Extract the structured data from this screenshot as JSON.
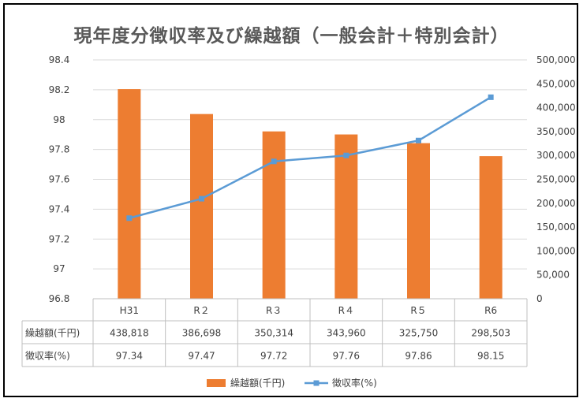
{
  "chart_data": {
    "type": "bar+line",
    "title": "現年度分徴収率及び繰越額（一般会計＋特別会計）",
    "categories": [
      "H31",
      "R２",
      "R３",
      "R４",
      "R５",
      "R6"
    ],
    "series": [
      {
        "name": "繰越額(千円)",
        "type": "bar",
        "axis": "right",
        "color": "#ED7D31",
        "values": [
          438818,
          386698,
          350314,
          343960,
          325750,
          298503
        ],
        "labels": [
          "438,818",
          "386,698",
          "350,314",
          "343,960",
          "325,750",
          "298,503"
        ]
      },
      {
        "name": "徴収率(%)",
        "type": "line",
        "axis": "left",
        "color": "#5B9BD5",
        "values": [
          97.34,
          97.47,
          97.72,
          97.76,
          97.86,
          98.15
        ],
        "labels": [
          "97.34",
          "97.47",
          "97.72",
          "97.76",
          "97.86",
          "98.15"
        ]
      }
    ],
    "left_axis": {
      "min": 96.8,
      "max": 98.4,
      "ticks": [
        "98.4",
        "98.2",
        "98",
        "97.8",
        "97.6",
        "97.4",
        "97.2",
        "97",
        "96.8"
      ]
    },
    "right_axis": {
      "min": 0,
      "max": 500000,
      "ticks": [
        "500,000",
        "450,000",
        "400,000",
        "350,000",
        "300,000",
        "250,000",
        "200,000",
        "150,000",
        "100,000",
        "50,000",
        "0"
      ]
    },
    "grid": true,
    "legend_position": "bottom",
    "data_table": true
  }
}
